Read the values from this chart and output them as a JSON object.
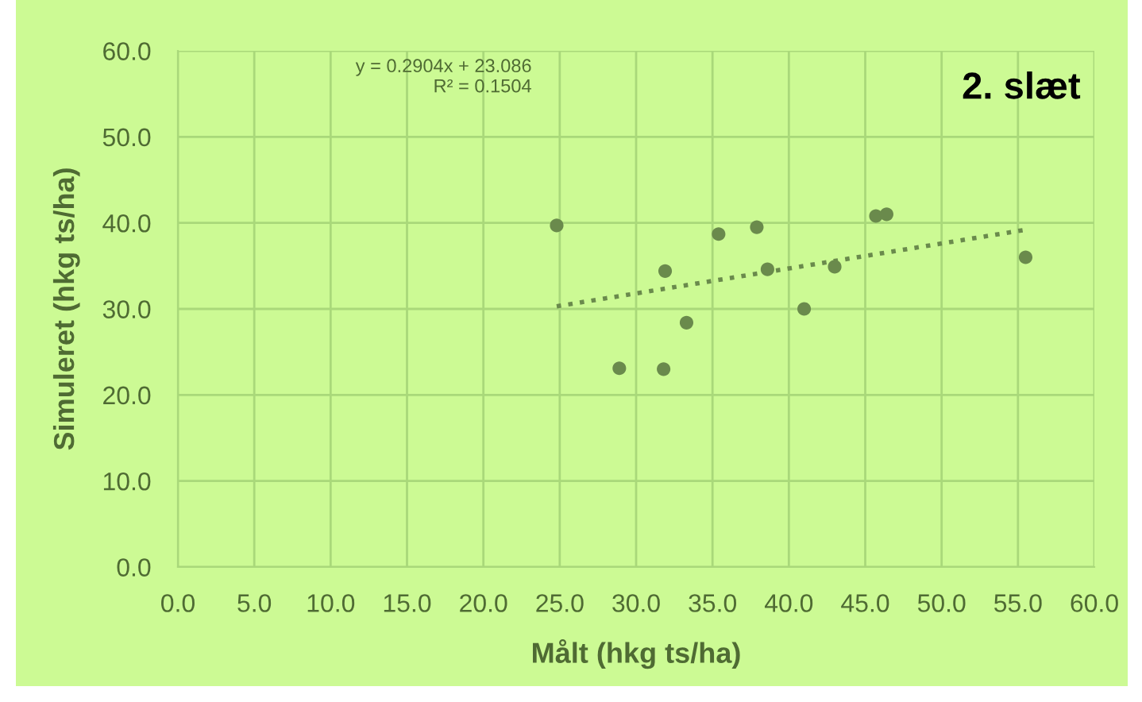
{
  "chart_data": {
    "type": "scatter",
    "title": "2. slæt",
    "xlabel": "Målt (hkg ts/ha)",
    "ylabel": "Simuleret (hkg ts/ha)",
    "annotations": [
      "y = 0.2904x + 23.086\nR² = 0.1504"
    ],
    "series": [
      {
        "color": "#6a8a4c",
        "marker": "circle",
        "x": [
          24.8,
          35.4,
          37.9,
          45.7,
          46.4,
          31.9,
          38.6,
          43.0,
          55.5,
          41.0,
          33.3,
          28.9,
          31.8
        ],
        "values": [
          39.7,
          38.7,
          39.5,
          40.8,
          41.0,
          34.4,
          34.6,
          34.9,
          36.0,
          30.0,
          28.4,
          23.1,
          23.0
        ]
      },
      {
        "type": "line",
        "color": "#6a8a4c",
        "line_style": "dotted",
        "marker": "none",
        "x": [
          24.8,
          55.5
        ],
        "values": [
          30.3,
          39.2
        ]
      }
    ],
    "xlim": [
      0,
      60
    ],
    "ylim": [
      0,
      60
    ],
    "xticks": [
      {
        "value": 0,
        "label": "0.0"
      },
      {
        "value": 5,
        "label": "5.0"
      },
      {
        "value": 10,
        "label": "10.0"
      },
      {
        "value": 15,
        "label": "15.0"
      },
      {
        "value": 20,
        "label": "20.0"
      },
      {
        "value": 25,
        "label": "25.0"
      },
      {
        "value": 30,
        "label": "30.0"
      },
      {
        "value": 35,
        "label": "35.0"
      },
      {
        "value": 40,
        "label": "40.0"
      },
      {
        "value": 45,
        "label": "45.0"
      },
      {
        "value": 50,
        "label": "50.0"
      },
      {
        "value": 55,
        "label": "55.0"
      },
      {
        "value": 60,
        "label": "60.0"
      }
    ],
    "yticks": [
      {
        "value": 0,
        "label": "0.0"
      },
      {
        "value": 10,
        "label": "10.0"
      },
      {
        "value": 20,
        "label": "20.0"
      },
      {
        "value": 30,
        "label": "30.0"
      },
      {
        "value": 40,
        "label": "40.0"
      },
      {
        "value": 50,
        "label": "50.0"
      },
      {
        "value": 60,
        "label": "60.0"
      }
    ],
    "grid": true,
    "legend": false
  }
}
